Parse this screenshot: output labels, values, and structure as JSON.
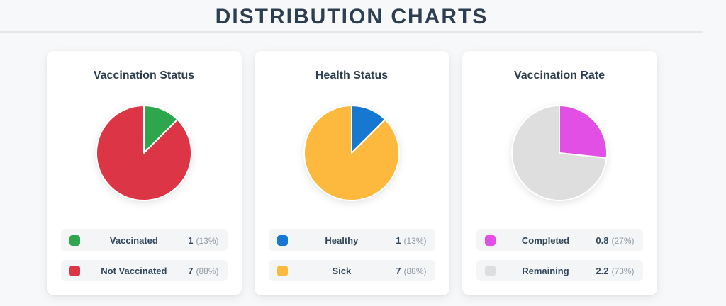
{
  "page": {
    "title": "DISTRIBUTION CHARTS",
    "background_color": "#f7f8f9",
    "title_color": "#2c3e50"
  },
  "chart_data": [
    {
      "type": "pie",
      "title": "Vaccination Status",
      "labels": [
        "Vaccinated",
        "Not Vaccinated"
      ],
      "values": [
        1,
        7
      ],
      "colors": [
        "#2ea64d",
        "#dc3545"
      ],
      "legend_position": "bottom",
      "legend": [
        {
          "label": "Vaccinated",
          "value": "1",
          "pct": "(13%)"
        },
        {
          "label": "Not Vaccinated",
          "value": "7",
          "pct": "(88%)"
        }
      ]
    },
    {
      "type": "pie",
      "title": "Health Status",
      "labels": [
        "Healthy",
        "Sick"
      ],
      "values": [
        1,
        7
      ],
      "colors": [
        "#1778d2",
        "#fcb93d"
      ],
      "legend_position": "bottom",
      "legend": [
        {
          "label": "Healthy",
          "value": "1",
          "pct": "(13%)"
        },
        {
          "label": "Sick",
          "value": "7",
          "pct": "(88%)"
        }
      ]
    },
    {
      "type": "pie",
      "title": "Vaccination Rate",
      "labels": [
        "Completed",
        "Remaining"
      ],
      "values": [
        0.8,
        2.2
      ],
      "colors": [
        "#e24fe5",
        "#dedede"
      ],
      "legend_position": "bottom",
      "legend": [
        {
          "label": "Completed",
          "value": "0.8",
          "pct": "(27%)"
        },
        {
          "label": "Remaining",
          "value": "2.2",
          "pct": "(73%)"
        }
      ]
    }
  ]
}
